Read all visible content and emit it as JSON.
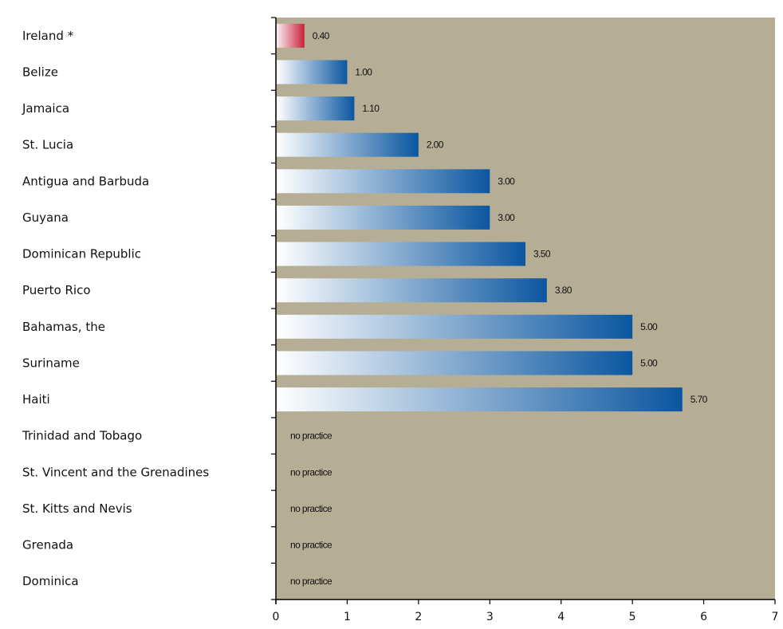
{
  "chart_data": {
    "type": "bar",
    "orientation": "horizontal",
    "categories": [
      "Ireland *",
      "Belize",
      "Jamaica",
      "St. Lucia",
      "Antigua and Barbuda",
      "Guyana",
      "Dominican Republic",
      "Puerto Rico",
      "Bahamas, the",
      "Suriname",
      "Haiti",
      "Trinidad and Tobago",
      "St. Vincent and the Grenadines",
      "St. Kitts and Nevis",
      "Grenada",
      "Dominica"
    ],
    "values": [
      0.4,
      1.0,
      1.1,
      2.0,
      3.0,
      3.0,
      3.5,
      3.8,
      5.0,
      5.0,
      5.7,
      null,
      null,
      null,
      null,
      null
    ],
    "value_labels": [
      "0.40",
      "1.00",
      "1.10",
      "2.00",
      "3.00",
      "3.00",
      "3.50",
      "3.80",
      "5.00",
      "5.00",
      "5.70",
      "no practice",
      "no practice",
      "no practice",
      "no practice",
      "no practice"
    ],
    "highlight_categories": [
      "Ireland *"
    ],
    "xlim": [
      0,
      7
    ],
    "xticks": [
      "0",
      "1",
      "2",
      "3",
      "4",
      "5",
      "6",
      "7"
    ],
    "title": "",
    "xlabel": "",
    "ylabel": "",
    "grid": false,
    "legend": "none",
    "colors": {
      "plot_background": "#b6ad95",
      "bar_start": "#ffffff",
      "bar_end": "#0a56a0",
      "highlight_start": "#fbeef0",
      "highlight_end": "#c8213c",
      "axis": "#000000"
    }
  }
}
